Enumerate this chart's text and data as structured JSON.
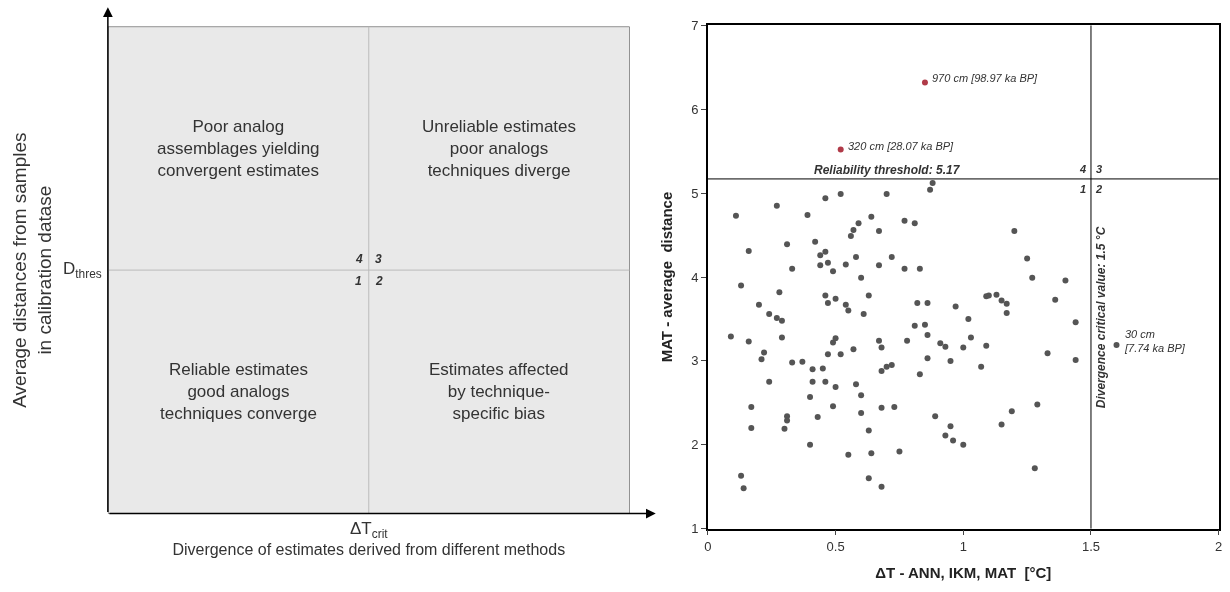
{
  "chart_data": [
    {
      "type": "other",
      "xlabel": "Divergence of estimates derived from different methods",
      "ylabel": "Average distances from samples\nin calibration datase",
      "annotations": [
        "Poor analog\nassemblages yielding\nconvergent estimates",
        "Unreliable estimates\npoor analogs\ntechniques diverge",
        "Reliable estimates\ngood analogs\ntechniques converge",
        "Estimates affected\nby technique-\nspecific bias",
        "4",
        "3",
        "1",
        "2",
        "D$_{thres}$",
        "ΔT$_{crit}$"
      ]
    },
    {
      "type": "scatter",
      "xlabel": "ΔT - ANN, IKM, MAT  [°C]",
      "ylabel": "MAT - average  distance",
      "xlim": [
        0,
        2
      ],
      "xticks": [
        0,
        {
          "value": 0.5,
          "label": "0.5"
        },
        1,
        {
          "value": 1.5,
          "label": "1.5"
        },
        2
      ],
      "ylim": [
        1,
        7
      ],
      "yticks": [
        1,
        2,
        3,
        4,
        5,
        6,
        7
      ],
      "marker": "circle",
      "x": [
        0.85,
        0.52,
        0.88,
        0.87,
        0.46,
        0.52,
        0.7,
        0.27,
        0.11,
        0.39,
        0.64,
        0.77,
        0.81,
        0.59,
        0.57,
        0.67,
        0.56,
        0.16,
        0.31,
        0.42,
        0.46,
        0.44,
        0.47,
        0.44,
        0.58,
        0.72,
        0.33,
        0.54,
        0.67,
        0.77,
        0.83,
        0.49,
        0.6,
        0.13,
        0.28,
        0.46,
        0.5,
        0.63,
        0.2,
        0.47,
        0.54,
        0.55,
        0.24,
        0.27,
        0.29,
        0.61,
        0.82,
        0.86,
        0.97,
        0.81,
        0.85,
        0.86,
        1.02,
        1.03,
        1.09,
        0.09,
        0.16,
        0.29,
        0.22,
        0.21,
        0.49,
        0.5,
        0.67,
        0.68,
        0.57,
        0.47,
        0.52,
        0.78,
        0.91,
        0.93,
        1.0,
        1.09,
        0.86,
        0.95,
        1.07,
        0.83,
        0.33,
        0.37,
        0.41,
        0.45,
        0.24,
        0.41,
        0.46,
        0.68,
        0.7,
        0.72,
        0.58,
        0.5,
        0.4,
        0.6,
        0.17,
        0.49,
        0.68,
        0.73,
        0.6,
        0.31,
        0.31,
        0.43,
        0.17,
        0.3,
        0.63,
        0.89,
        0.95,
        0.93,
        0.96,
        1.0,
        0.4,
        0.55,
        0.64,
        0.75,
        0.13,
        0.14,
        0.63,
        0.68,
        1.2,
        1.25,
        1.27,
        1.4,
        1.1,
        1.13,
        1.15,
        1.17,
        1.17,
        1.36,
        1.44,
        1.33,
        1.44,
        1.6,
        1.29,
        1.19,
        1.15,
        1.28
      ],
      "values": [
        6.32,
        5.52,
        5.12,
        5.04,
        4.94,
        4.99,
        4.99,
        4.85,
        4.73,
        4.74,
        4.72,
        4.67,
        4.64,
        4.64,
        4.56,
        4.55,
        4.49,
        4.31,
        4.39,
        4.42,
        4.3,
        4.26,
        4.17,
        4.14,
        4.24,
        4.24,
        4.1,
        4.15,
        4.14,
        4.1,
        4.1,
        4.07,
        3.99,
        3.9,
        3.82,
        3.78,
        3.74,
        3.78,
        3.67,
        3.69,
        3.67,
        3.6,
        3.56,
        3.51,
        3.48,
        3.56,
        3.69,
        3.69,
        3.65,
        3.42,
        3.43,
        3.31,
        3.5,
        3.28,
        3.77,
        3.29,
        3.23,
        3.28,
        3.1,
        3.02,
        3.22,
        3.27,
        3.24,
        3.16,
        3.14,
        3.08,
        3.08,
        3.24,
        3.21,
        3.17,
        3.16,
        3.18,
        3.03,
        3.0,
        2.93,
        2.84,
        2.98,
        2.99,
        2.9,
        2.91,
        2.75,
        2.75,
        2.75,
        2.88,
        2.93,
        2.95,
        2.72,
        2.69,
        2.57,
        2.59,
        2.45,
        2.46,
        2.44,
        2.45,
        2.38,
        2.34,
        2.29,
        2.33,
        2.2,
        2.19,
        2.17,
        2.34,
        2.22,
        2.11,
        2.05,
        2.0,
        2.0,
        1.88,
        1.9,
        1.92,
        1.63,
        1.48,
        1.6,
        1.5,
        4.55,
        4.22,
        3.99,
        3.96,
        3.78,
        3.79,
        3.72,
        3.68,
        3.57,
        3.73,
        3.46,
        3.09,
        3.01,
        3.19,
        2.48,
        2.4,
        2.24,
        1.72
      ],
      "colors": [
        "#b03a48",
        "#b03a48",
        "#555555",
        "#555555",
        "#555555",
        "#555555",
        "#555555",
        "#555555",
        "#555555",
        "#555555",
        "#555555",
        "#555555",
        "#555555",
        "#555555",
        "#555555",
        "#555555",
        "#555555",
        "#555555",
        "#555555",
        "#555555",
        "#555555",
        "#555555",
        "#555555",
        "#555555",
        "#555555",
        "#555555",
        "#555555",
        "#555555",
        "#555555",
        "#555555",
        "#555555",
        "#555555",
        "#555555",
        "#555555",
        "#555555",
        "#555555",
        "#555555",
        "#555555",
        "#555555",
        "#555555",
        "#555555",
        "#555555",
        "#555555",
        "#555555",
        "#555555",
        "#555555",
        "#555555",
        "#555555",
        "#555555",
        "#555555",
        "#555555",
        "#555555",
        "#555555",
        "#555555",
        "#555555",
        "#555555",
        "#555555",
        "#555555",
        "#555555",
        "#555555",
        "#555555",
        "#555555",
        "#555555",
        "#555555",
        "#555555",
        "#555555",
        "#555555",
        "#555555",
        "#555555",
        "#555555",
        "#555555",
        "#555555",
        "#555555",
        "#555555",
        "#555555",
        "#555555",
        "#555555",
        "#555555",
        "#555555",
        "#555555",
        "#555555",
        "#555555",
        "#555555",
        "#555555",
        "#555555",
        "#555555",
        "#555555",
        "#555555",
        "#555555",
        "#555555",
        "#555555",
        "#555555",
        "#555555",
        "#555555",
        "#555555",
        "#555555",
        "#555555",
        "#555555",
        "#555555",
        "#555555",
        "#555555",
        "#555555",
        "#555555",
        "#555555",
        "#555555",
        "#555555",
        "#555555",
        "#555555",
        "#555555",
        "#555555",
        "#555555",
        "#555555",
        "#555555",
        "#555555",
        "#555555",
        "#555555",
        "#555555",
        "#555555",
        "#555555",
        "#555555",
        "#555555",
        "#555555",
        "#555555",
        "#555555",
        "#555555",
        "#555555",
        "#555555",
        "#555555",
        "#555555",
        "#555555",
        "#555555",
        "#555555"
      ],
      "ref_lines": [
        {
          "axis": "y",
          "value": 5.17,
          "label": "Reliability threshold: 5.17"
        },
        {
          "axis": "x",
          "value": 1.5,
          "label": "Divergence critical value: 1.5 °C"
        }
      ],
      "annotations": [
        {
          "text": "970 cm [98.97 ka BP]",
          "x": 0.85,
          "y": 6.32
        },
        {
          "text": "320 cm [28.07 ka BP]",
          "x": 0.52,
          "y": 5.52
        },
        {
          "text": "30 cm\n[7.74 ka BP]",
          "x": 1.6,
          "y": 3.19
        },
        "4",
        "3",
        "1",
        "2"
      ]
    }
  ]
}
